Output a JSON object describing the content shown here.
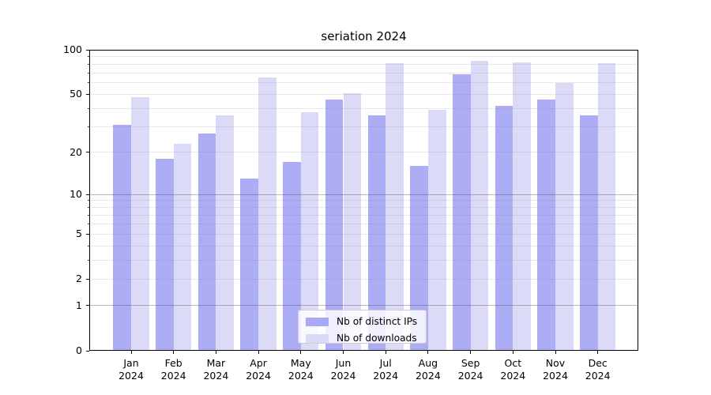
{
  "figure": {
    "background": "#ffffff"
  },
  "chart_data": {
    "type": "bar",
    "title": "seriation 2024",
    "categories": [
      "Jan",
      "Feb",
      "Mar",
      "Apr",
      "May",
      "Jun",
      "Jul",
      "Aug",
      "Sep",
      "Oct",
      "Nov",
      "Dec"
    ],
    "category_year": "2024",
    "series": [
      {
        "name": "Nb of distinct IPs",
        "color": "#a9a9f5",
        "values": [
          31,
          18,
          27,
          13,
          17,
          46,
          36,
          16,
          68,
          42,
          46,
          36
        ]
      },
      {
        "name": "Nb of downloads",
        "color": "#d9d9f8",
        "values": [
          48,
          23,
          36,
          65,
          38,
          51,
          81,
          39,
          84,
          82,
          60,
          81
        ]
      }
    ],
    "yscale": "log1p",
    "ylim": [
      0,
      100
    ],
    "ytick_values": [
      0,
      1,
      2,
      5,
      10,
      20,
      50,
      100
    ],
    "ytick_labels": [
      "0",
      "1",
      "2",
      "5",
      "10",
      "20",
      "50",
      "100"
    ],
    "yminor_tick_values": [
      3,
      4,
      6,
      7,
      8,
      9,
      30,
      40,
      60,
      70,
      80,
      90
    ],
    "grid_major_values": [
      1,
      10,
      100
    ],
    "grid_minor_values": [
      2,
      3,
      4,
      5,
      6,
      7,
      8,
      9,
      20,
      30,
      40,
      50,
      60,
      70,
      80,
      90
    ],
    "grid": true,
    "legend_position": "lower center"
  }
}
